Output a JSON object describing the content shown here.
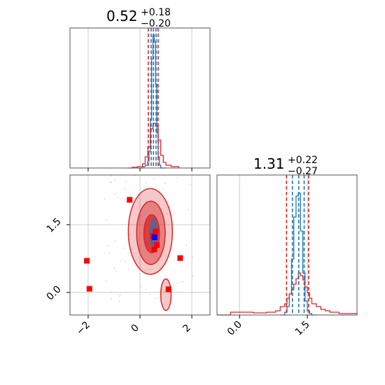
{
  "colors": {
    "blue": "#1f77b4",
    "red": "#d62728",
    "grid": "#cccccc",
    "axis": "#000000",
    "scatter_red": "#ff0000",
    "scatter_blue": "#0000ff"
  },
  "chart_data": [
    {
      "type": "histogram",
      "panel": "top-left",
      "title": {
        "main": "0.52",
        "sup": "+0.18",
        "sub": "−0.20"
      },
      "xlim": [
        -2.7,
        2.7
      ],
      "ylim": [
        0,
        1
      ],
      "grid": true,
      "vlines": {
        "blue": [
          0.43,
          0.52,
          0.62
        ],
        "red": [
          0.32,
          0.7
        ]
      },
      "series": [
        {
          "color": "blue",
          "bins": [
            -0.1,
            0.0,
            0.1,
            0.2,
            0.3,
            0.35,
            0.4,
            0.45,
            0.5,
            0.55,
            0.6,
            0.65,
            0.7,
            0.75,
            0.8,
            0.9,
            1.0
          ],
          "heights": [
            0.0,
            0.0,
            0.01,
            0.02,
            0.05,
            0.12,
            0.35,
            0.78,
            0.95,
            0.9,
            0.6,
            0.25,
            0.08,
            0.02,
            0.0,
            0.0
          ]
        },
        {
          "color": "red",
          "bins": [
            -0.5,
            -0.3,
            -0.1,
            0.1,
            0.2,
            0.3,
            0.4,
            0.5,
            0.6,
            0.7,
            0.8,
            0.9,
            1.0,
            1.2,
            1.5
          ],
          "heights": [
            0.0,
            0.005,
            0.01,
            0.03,
            0.08,
            0.15,
            0.28,
            0.32,
            0.3,
            0.2,
            0.09,
            0.04,
            0.02,
            0.01
          ]
        }
      ],
      "xticks": [
        -2,
        0,
        2
      ]
    },
    {
      "type": "contour-scatter",
      "panel": "bottom-left",
      "xlim": [
        -2.7,
        2.7
      ],
      "ylim": [
        -0.5,
        2.6
      ],
      "grid": true,
      "xticks": [
        -2,
        0,
        2
      ],
      "xtick_labels": [
        "−2",
        "0",
        "2"
      ],
      "yticks": [
        0.0,
        1.5
      ],
      "ytick_labels": [
        "0.0",
        "1.5"
      ],
      "contours": [
        {
          "color": "red",
          "level": "outer",
          "center": [
            0.4,
            1.35
          ],
          "rx": 0.85,
          "ry": 0.95
        },
        {
          "color": "red",
          "level": "mid",
          "center": [
            0.42,
            1.32
          ],
          "rx": 0.55,
          "ry": 0.7
        },
        {
          "color": "red",
          "level": "inner",
          "center": [
            0.45,
            1.3
          ],
          "rx": 0.3,
          "ry": 0.42
        },
        {
          "color": "blue",
          "level": "outer",
          "center": [
            0.52,
            1.31
          ],
          "rx": 0.12,
          "ry": 0.32
        },
        {
          "color": "red",
          "level": "tail",
          "center": [
            1.0,
            -0.05
          ],
          "rx": 0.2,
          "ry": 0.35
        }
      ],
      "scatter_red": [
        [
          -0.4,
          2.05
        ],
        [
          -2.05,
          0.7
        ],
        [
          -1.95,
          0.08
        ],
        [
          1.55,
          0.76
        ],
        [
          1.1,
          0.07
        ],
        [
          0.55,
          0.95
        ],
        [
          0.65,
          1.05
        ],
        [
          0.5,
          1.25
        ],
        [
          0.6,
          1.35
        ]
      ],
      "scatter_blue": [
        [
          0.56,
          1.22
        ]
      ]
    },
    {
      "type": "histogram",
      "panel": "bottom-right",
      "title": {
        "main": "1.31",
        "sup": "+0.22",
        "sub": "−0.27"
      },
      "xlim": [
        -0.5,
        2.6
      ],
      "ylim": [
        0,
        1
      ],
      "grid": true,
      "xticks": [
        0.0,
        1.5
      ],
      "xtick_labels": [
        "0.0",
        "1.5"
      ],
      "vlines": {
        "blue": [
          1.17,
          1.31,
          1.43
        ],
        "red": [
          1.04,
          1.53
        ]
      },
      "series": [
        {
          "color": "blue",
          "bins": [
            0.9,
            1.0,
            1.05,
            1.1,
            1.15,
            1.2,
            1.25,
            1.3,
            1.35,
            1.4,
            1.45,
            1.5,
            1.55,
            1.6,
            1.7
          ],
          "heights": [
            0.0,
            0.02,
            0.06,
            0.15,
            0.4,
            0.7,
            0.85,
            0.87,
            0.6,
            0.3,
            0.1,
            0.03,
            0.01,
            0.0
          ]
        },
        {
          "color": "red",
          "bins": [
            -0.5,
            -0.2,
            0.0,
            0.3,
            0.6,
            0.8,
            0.9,
            1.0,
            1.05,
            1.1,
            1.15,
            1.2,
            1.25,
            1.3,
            1.35,
            1.4,
            1.45,
            1.5,
            1.55,
            1.6,
            1.7,
            1.8,
            1.9,
            2.0,
            2.2,
            2.6
          ],
          "heights": [
            0.0,
            0.02,
            0.02,
            0.015,
            0.02,
            0.03,
            0.06,
            0.08,
            0.12,
            0.15,
            0.18,
            0.22,
            0.26,
            0.3,
            0.28,
            0.25,
            0.2,
            0.16,
            0.12,
            0.08,
            0.06,
            0.04,
            0.03,
            0.02,
            0.01
          ]
        }
      ]
    }
  ]
}
